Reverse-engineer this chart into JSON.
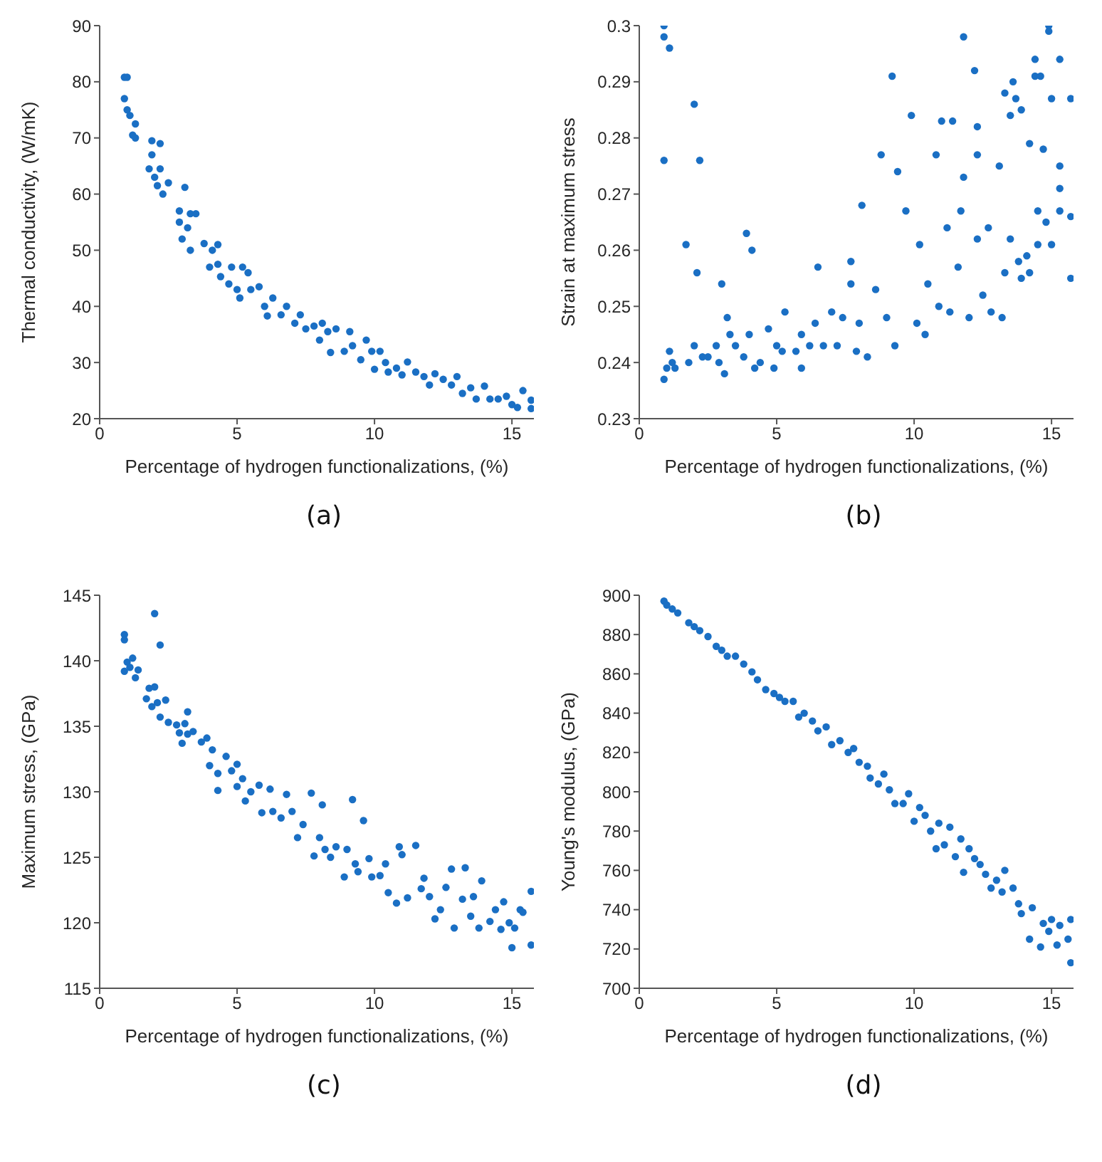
{
  "chart_data": [
    {
      "type": "scatter",
      "xlabel": "Percentage of hydrogen functionalizations, (%)",
      "ylabel": "Thermal conductivity, (W/mK)",
      "color": "#1a6fc4",
      "marker": "circle",
      "xlim": [
        0,
        15.8
      ],
      "xticks": [
        0,
        5,
        10,
        15
      ],
      "ylim": [
        20,
        90
      ],
      "yticks": [
        20,
        30,
        40,
        50,
        60,
        70,
        80,
        90
      ],
      "annotations": [
        "(a)"
      ],
      "x": [
        0.9,
        0.9,
        1.0,
        1.0,
        1.1,
        1.2,
        1.3,
        1.3,
        1.8,
        1.9,
        1.9,
        2.0,
        2.1,
        2.2,
        2.2,
        2.3,
        2.5,
        2.9,
        2.9,
        3.0,
        3.1,
        3.2,
        3.3,
        3.3,
        3.5,
        3.8,
        4.0,
        4.1,
        4.3,
        4.3,
        4.4,
        4.7,
        4.8,
        5.0,
        5.1,
        5.2,
        5.4,
        5.5,
        5.8,
        6.0,
        6.1,
        6.3,
        6.6,
        6.8,
        7.1,
        7.3,
        7.5,
        7.8,
        8.0,
        8.1,
        8.3,
        8.4,
        8.6,
        8.9,
        9.1,
        9.2,
        9.5,
        9.7,
        9.9,
        10.0,
        10.2,
        10.4,
        10.5,
        10.8,
        11.0,
        11.2,
        11.5,
        11.8,
        12.0,
        12.2,
        12.5,
        12.8,
        13.0,
        13.2,
        13.5,
        13.7,
        14.0,
        14.2,
        14.5,
        14.8,
        15.0,
        15.2,
        15.4,
        15.7,
        15.7
      ],
      "values": [
        77,
        80.8,
        80.8,
        75,
        74,
        70.5,
        72.5,
        70,
        64.5,
        69.5,
        67,
        63,
        61.5,
        69,
        64.5,
        60,
        62,
        57,
        55,
        52,
        61.2,
        54,
        56.5,
        50,
        56.5,
        51.2,
        47,
        50,
        51,
        47.5,
        45.3,
        44,
        47,
        43,
        41.5,
        47,
        46,
        43,
        43.5,
        40,
        38.3,
        41.5,
        38.5,
        40,
        37,
        38.5,
        36,
        36.5,
        34,
        37,
        35.5,
        31.8,
        36,
        32,
        35.5,
        33,
        30.5,
        34,
        32,
        28.8,
        32,
        30,
        28.3,
        29,
        27.8,
        30.1,
        28.3,
        27.5,
        26,
        28,
        27,
        26,
        27.5,
        24.5,
        25.5,
        23.5,
        25.8,
        23.5,
        23.5,
        24,
        22.5,
        22,
        25,
        21.8,
        23.3
      ]
    },
    {
      "type": "scatter",
      "xlabel": "Percentage of hydrogen functionalizations, (%)",
      "ylabel": "Strain at maximum stress",
      "color": "#1a6fc4",
      "marker": "circle",
      "xlim": [
        0,
        15.8
      ],
      "xticks": [
        0,
        5,
        10,
        15
      ],
      "ylim": [
        0.23,
        0.3
      ],
      "yticks": [
        0.23,
        0.24,
        0.25,
        0.26,
        0.27,
        0.28,
        0.29,
        0.3
      ],
      "annotations": [
        "(b)"
      ],
      "x": [
        0.9,
        0.9,
        0.9,
        0.9,
        1.1,
        1.0,
        1.1,
        1.2,
        1.3,
        1.7,
        1.8,
        2.0,
        2.0,
        2.1,
        2.2,
        2.3,
        2.5,
        2.8,
        2.9,
        3.0,
        3.1,
        3.2,
        3.3,
        3.5,
        3.8,
        3.9,
        4.0,
        4.1,
        4.2,
        4.4,
        4.7,
        4.9,
        5.0,
        5.2,
        5.3,
        5.7,
        5.9,
        5.9,
        6.2,
        6.4,
        6.5,
        6.7,
        7.0,
        7.2,
        7.4,
        7.7,
        7.7,
        7.9,
        8.0,
        8.1,
        8.3,
        8.6,
        8.8,
        9.0,
        9.2,
        9.3,
        9.4,
        9.7,
        9.9,
        10.1,
        10.2,
        10.4,
        10.5,
        10.8,
        10.9,
        11.0,
        11.2,
        11.3,
        11.4,
        11.6,
        11.7,
        11.8,
        11.8,
        12.0,
        12.2,
        12.3,
        12.3,
        12.3,
        12.5,
        12.7,
        12.8,
        13.1,
        13.2,
        13.3,
        13.3,
        13.5,
        13.5,
        13.6,
        13.7,
        13.8,
        13.9,
        13.9,
        14.1,
        14.2,
        14.2,
        14.4,
        14.4,
        14.5,
        14.5,
        14.6,
        14.7,
        14.8,
        14.9,
        14.9,
        15.0,
        15.0,
        15.3,
        15.3,
        15.3,
        15.3,
        15.7,
        15.7,
        15.7
      ],
      "values": [
        0.237,
        0.3,
        0.298,
        0.276,
        0.296,
        0.239,
        0.242,
        0.24,
        0.239,
        0.261,
        0.24,
        0.243,
        0.286,
        0.256,
        0.276,
        0.241,
        0.241,
        0.243,
        0.24,
        0.254,
        0.238,
        0.248,
        0.245,
        0.243,
        0.241,
        0.263,
        0.245,
        0.26,
        0.239,
        0.24,
        0.246,
        0.239,
        0.243,
        0.242,
        0.249,
        0.242,
        0.245,
        0.239,
        0.243,
        0.247,
        0.257,
        0.243,
        0.249,
        0.243,
        0.248,
        0.254,
        0.258,
        0.242,
        0.247,
        0.268,
        0.241,
        0.253,
        0.277,
        0.248,
        0.291,
        0.243,
        0.274,
        0.267,
        0.284,
        0.247,
        0.261,
        0.245,
        0.254,
        0.277,
        0.25,
        0.283,
        0.264,
        0.249,
        0.283,
        0.257,
        0.267,
        0.298,
        0.273,
        0.248,
        0.292,
        0.282,
        0.277,
        0.262,
        0.252,
        0.264,
        0.249,
        0.275,
        0.248,
        0.256,
        0.288,
        0.284,
        0.262,
        0.29,
        0.287,
        0.258,
        0.285,
        0.255,
        0.259,
        0.279,
        0.256,
        0.294,
        0.291,
        0.267,
        0.261,
        0.291,
        0.278,
        0.265,
        0.3,
        0.299,
        0.287,
        0.261,
        0.294,
        0.275,
        0.271,
        0.267,
        0.287,
        0.266,
        0.255
      ]
    },
    {
      "type": "scatter",
      "xlabel": "Percentage of hydrogen functionalizations, (%)",
      "ylabel": "Maximum stress, (GPa)",
      "color": "#1a6fc4",
      "marker": "circle",
      "xlim": [
        0,
        15.8
      ],
      "xticks": [
        0,
        5,
        10,
        15
      ],
      "ylim": [
        115,
        145
      ],
      "yticks": [
        115,
        120,
        125,
        130,
        135,
        140,
        145
      ],
      "annotations": [
        "(c)"
      ],
      "x": [
        0.9,
        0.9,
        0.9,
        1.0,
        1.1,
        1.2,
        1.3,
        1.4,
        1.7,
        1.8,
        1.9,
        2.0,
        2.0,
        2.1,
        2.2,
        2.2,
        2.4,
        2.5,
        2.8,
        2.9,
        3.0,
        3.1,
        3.2,
        3.2,
        3.4,
        3.7,
        3.9,
        4.0,
        4.1,
        4.3,
        4.3,
        4.6,
        4.8,
        5.0,
        5.0,
        5.2,
        5.3,
        5.5,
        5.8,
        5.9,
        6.2,
        6.3,
        6.6,
        6.8,
        7.0,
        7.2,
        7.4,
        7.7,
        7.8,
        8.0,
        8.1,
        8.2,
        8.4,
        8.6,
        8.9,
        9.0,
        9.2,
        9.3,
        9.4,
        9.6,
        9.8,
        9.9,
        10.2,
        10.4,
        10.5,
        10.8,
        10.9,
        11.0,
        11.2,
        11.5,
        11.7,
        11.8,
        12.0,
        12.2,
        12.4,
        12.6,
        12.8,
        12.9,
        13.2,
        13.3,
        13.5,
        13.6,
        13.8,
        13.9,
        14.2,
        14.4,
        14.6,
        14.7,
        14.9,
        15.0,
        15.1,
        15.3,
        15.4,
        15.7,
        15.7
      ],
      "values": [
        139.2,
        142,
        141.6,
        139.9,
        139.5,
        140.2,
        138.7,
        139.3,
        137.1,
        137.9,
        136.5,
        143.6,
        138,
        136.8,
        141.2,
        135.7,
        137,
        135.3,
        135.1,
        134.5,
        133.7,
        135.2,
        134.4,
        136.1,
        134.6,
        133.8,
        134.1,
        132,
        133.2,
        131.4,
        130.1,
        132.7,
        131.6,
        130.4,
        132.1,
        131,
        129.3,
        130,
        130.5,
        128.4,
        130.2,
        128.5,
        128,
        129.8,
        128.5,
        126.5,
        127.5,
        129.9,
        125.1,
        126.5,
        129,
        125.6,
        125,
        125.8,
        123.5,
        125.6,
        129.4,
        124.5,
        123.9,
        127.8,
        124.9,
        123.5,
        123.6,
        124.5,
        122.3,
        121.5,
        125.8,
        125.2,
        121.9,
        125.9,
        122.6,
        123.4,
        122,
        120.3,
        121,
        122.7,
        124.1,
        119.6,
        121.8,
        124.2,
        120.5,
        122,
        119.6,
        123.2,
        120.1,
        121,
        119.5,
        121.6,
        120,
        118.1,
        119.6,
        121,
        120.8,
        122.4,
        118.3
      ]
    },
    {
      "type": "scatter",
      "xlabel": "Percentage of hydrogen functionalizations, (%)",
      "ylabel": "Young's modulus, (GPa)",
      "color": "#1a6fc4",
      "marker": "circle",
      "xlim": [
        0,
        15.8
      ],
      "xticks": [
        0,
        5,
        10,
        15
      ],
      "ylim": [
        700,
        900
      ],
      "yticks": [
        700,
        720,
        740,
        760,
        780,
        800,
        820,
        840,
        860,
        880,
        900
      ],
      "annotations": [
        "(d)"
      ],
      "x": [
        0.9,
        1.0,
        1.2,
        1.4,
        1.8,
        2.0,
        2.2,
        2.5,
        2.8,
        3.0,
        3.2,
        3.5,
        3.8,
        4.1,
        4.3,
        4.6,
        4.9,
        5.1,
        5.3,
        5.6,
        5.8,
        6.0,
        6.3,
        6.5,
        6.8,
        7.0,
        7.3,
        7.6,
        7.8,
        8.0,
        8.3,
        8.4,
        8.7,
        8.9,
        9.1,
        9.3,
        9.6,
        9.8,
        10.0,
        10.2,
        10.4,
        10.6,
        10.8,
        10.9,
        11.1,
        11.3,
        11.5,
        11.7,
        11.8,
        12.0,
        12.2,
        12.4,
        12.6,
        12.8,
        13.0,
        13.2,
        13.3,
        13.6,
        13.8,
        13.9,
        14.2,
        14.3,
        14.6,
        14.7,
        14.9,
        15.0,
        15.2,
        15.3,
        15.6,
        15.7,
        15.7
      ],
      "values": [
        897,
        895,
        893,
        891,
        886,
        884,
        882,
        879,
        874,
        872,
        869,
        869,
        865,
        861,
        857,
        852,
        850,
        848,
        846,
        846,
        838,
        840,
        836,
        831,
        833,
        824,
        826,
        820,
        822,
        815,
        813,
        807,
        804,
        809,
        801,
        794,
        794,
        799,
        785,
        792,
        788,
        780,
        771,
        784,
        773,
        782,
        767,
        776,
        759,
        771,
        766,
        763,
        758,
        751,
        755,
        749,
        760,
        751,
        743,
        738,
        725,
        741,
        721,
        733,
        729,
        735,
        722,
        732,
        725,
        735,
        713
      ]
    }
  ]
}
